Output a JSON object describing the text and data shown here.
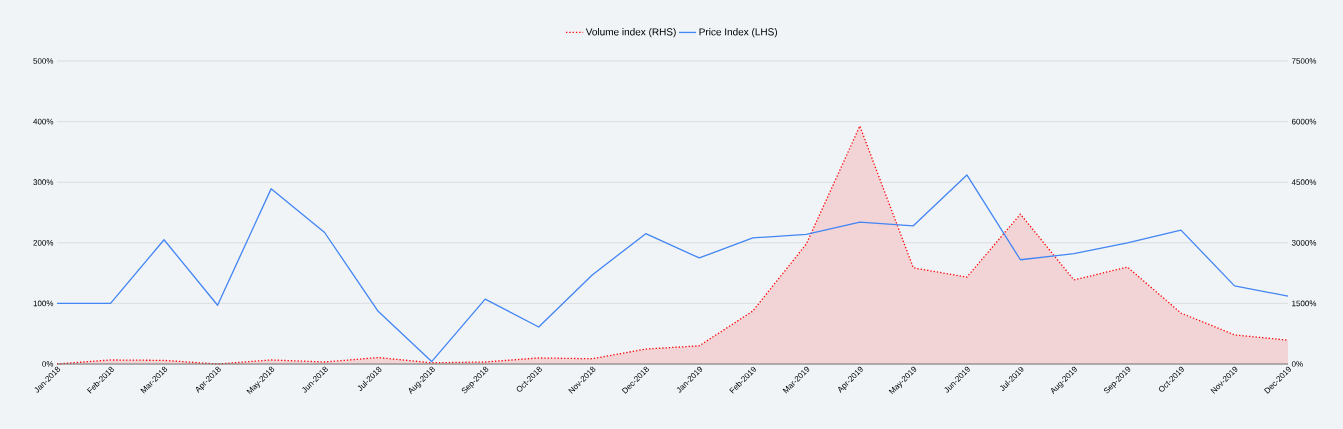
{
  "chart_data": {
    "type": "line",
    "categories": [
      "Jan-2018",
      "Feb-2018",
      "Mar-2018",
      "Apr-2018",
      "May-2018",
      "Jun-2018",
      "Jul-2018",
      "Aug-2018",
      "Sep-2018",
      "Oct-2018",
      "Nov-2018",
      "Dec-2018",
      "Jan-2019",
      "Feb-2019",
      "Mar-2019",
      "Apr-2019",
      "May-2019",
      "Jun-2019",
      "Jul-2019",
      "Aug-2019",
      "Sep-2019",
      "Oct-2019",
      "Nov-2019",
      "Dec-2019"
    ],
    "series": [
      {
        "name": "Volume index (RHS)",
        "type": "area",
        "axis": "y2",
        "line_style": "dotted",
        "color": "#ff0000",
        "values": [
          0,
          100,
          90,
          0,
          100,
          50,
          160,
          30,
          50,
          150,
          130,
          370,
          450,
          1310,
          2970,
          5890,
          2380,
          2150,
          3710,
          2080,
          2400,
          1260,
          720,
          590
        ]
      },
      {
        "name": "Price Index (LHS)",
        "line_style": "solid",
        "color": "#4285f4",
        "values": [
          100,
          100,
          205,
          97,
          289,
          217,
          87,
          4,
          107,
          61,
          147,
          215,
          175,
          208,
          214,
          234,
          228,
          312,
          172,
          182,
          200,
          221,
          129,
          112
        ]
      }
    ],
    "ylim": [
      0,
      500
    ],
    "yticks": [
      {
        "value": 0,
        "label": "0%"
      },
      {
        "value": 100,
        "label": "100%"
      },
      {
        "value": 200,
        "label": "200%"
      },
      {
        "value": 300,
        "label": "300%"
      },
      {
        "value": 400,
        "label": "400%"
      },
      {
        "value": 500,
        "label": "500%"
      }
    ],
    "y2lim": [
      0,
      7500
    ],
    "y2ticks": [
      {
        "value": 0,
        "label": "0%"
      },
      {
        "value": 1500,
        "label": "1500%"
      },
      {
        "value": 3000,
        "label": "3000%"
      },
      {
        "value": 4500,
        "label": "4500%"
      },
      {
        "value": 6000,
        "label": "6000%"
      },
      {
        "value": 7500,
        "label": "7500%"
      }
    ],
    "grid": "y",
    "legend": "top",
    "marker": "none"
  }
}
